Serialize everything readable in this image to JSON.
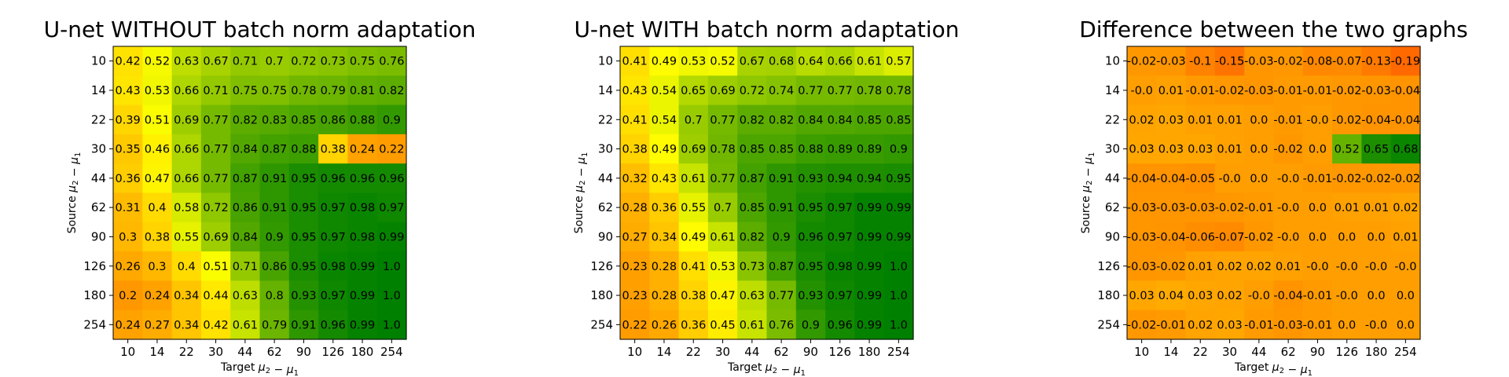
{
  "chart_data": [
    {
      "type": "heatmap",
      "title": "U-net WITHOUT batch norm adaptation",
      "xlabel": "Target μ2 − μ1",
      "ylabel": "Source μ2 − μ1",
      "x_categories": [
        "10",
        "14",
        "22",
        "30",
        "44",
        "62",
        "90",
        "126",
        "180",
        "254"
      ],
      "y_categories": [
        "10",
        "14",
        "22",
        "30",
        "44",
        "62",
        "90",
        "126",
        "180",
        "254"
      ],
      "value_range": [
        0,
        1
      ],
      "colormap": "orange-yellow-green",
      "values": [
        [
          "0.42",
          "0.52",
          "0.63",
          "0.67",
          "0.71",
          "0.7",
          "0.72",
          "0.73",
          "0.75",
          "0.76"
        ],
        [
          "0.43",
          "0.53",
          "0.66",
          "0.71",
          "0.75",
          "0.75",
          "0.78",
          "0.79",
          "0.81",
          "0.82"
        ],
        [
          "0.39",
          "0.51",
          "0.69",
          "0.77",
          "0.82",
          "0.83",
          "0.85",
          "0.86",
          "0.88",
          "0.9"
        ],
        [
          "0.35",
          "0.46",
          "0.66",
          "0.77",
          "0.84",
          "0.87",
          "0.88",
          "0.38",
          "0.24",
          "0.22"
        ],
        [
          "0.36",
          "0.47",
          "0.66",
          "0.77",
          "0.87",
          "0.91",
          "0.95",
          "0.96",
          "0.96",
          "0.96"
        ],
        [
          "0.31",
          "0.4",
          "0.58",
          "0.72",
          "0.86",
          "0.91",
          "0.95",
          "0.97",
          "0.98",
          "0.97"
        ],
        [
          "0.3",
          "0.38",
          "0.55",
          "0.69",
          "0.84",
          "0.9",
          "0.95",
          "0.97",
          "0.98",
          "0.99"
        ],
        [
          "0.26",
          "0.3",
          "0.4",
          "0.51",
          "0.71",
          "0.86",
          "0.95",
          "0.98",
          "0.99",
          "1.0"
        ],
        [
          "0.2",
          "0.24",
          "0.34",
          "0.44",
          "0.63",
          "0.8",
          "0.93",
          "0.97",
          "0.99",
          "1.0"
        ],
        [
          "0.24",
          "0.27",
          "0.34",
          "0.42",
          "0.61",
          "0.79",
          "0.91",
          "0.96",
          "0.99",
          "1.0"
        ]
      ]
    },
    {
      "type": "heatmap",
      "title": "U-net WITH batch norm adaptation",
      "xlabel": "Target μ2 − μ1",
      "ylabel": "Source μ2 − μ1",
      "x_categories": [
        "10",
        "14",
        "22",
        "30",
        "44",
        "62",
        "90",
        "126",
        "180",
        "254"
      ],
      "y_categories": [
        "10",
        "14",
        "22",
        "30",
        "44",
        "62",
        "90",
        "126",
        "180",
        "254"
      ],
      "value_range": [
        0,
        1
      ],
      "colormap": "orange-yellow-green",
      "values": [
        [
          "0.41",
          "0.49",
          "0.53",
          "0.52",
          "0.67",
          "0.68",
          "0.64",
          "0.66",
          "0.61",
          "0.57"
        ],
        [
          "0.43",
          "0.54",
          "0.65",
          "0.69",
          "0.72",
          "0.74",
          "0.77",
          "0.77",
          "0.78",
          "0.78"
        ],
        [
          "0.41",
          "0.54",
          "0.7",
          "0.77",
          "0.82",
          "0.82",
          "0.84",
          "0.84",
          "0.85",
          "0.85"
        ],
        [
          "0.38",
          "0.49",
          "0.69",
          "0.78",
          "0.85",
          "0.85",
          "0.88",
          "0.89",
          "0.89",
          "0.9"
        ],
        [
          "0.32",
          "0.43",
          "0.61",
          "0.77",
          "0.87",
          "0.91",
          "0.93",
          "0.94",
          "0.94",
          "0.95"
        ],
        [
          "0.28",
          "0.36",
          "0.55",
          "0.7",
          "0.85",
          "0.91",
          "0.95",
          "0.97",
          "0.99",
          "0.99"
        ],
        [
          "0.27",
          "0.34",
          "0.49",
          "0.61",
          "0.82",
          "0.9",
          "0.96",
          "0.97",
          "0.99",
          "0.99"
        ],
        [
          "0.23",
          "0.28",
          "0.41",
          "0.53",
          "0.73",
          "0.87",
          "0.95",
          "0.98",
          "0.99",
          "1.0"
        ],
        [
          "0.23",
          "0.28",
          "0.38",
          "0.47",
          "0.63",
          "0.77",
          "0.93",
          "0.97",
          "0.99",
          "1.0"
        ],
        [
          "0.22",
          "0.26",
          "0.36",
          "0.45",
          "0.61",
          "0.76",
          "0.9",
          "0.96",
          "0.99",
          "1.0"
        ]
      ]
    },
    {
      "type": "heatmap",
      "title": "Difference between the two graphs",
      "xlabel": "Target μ2 − μ1",
      "ylabel": "Source μ2 − μ1",
      "x_categories": [
        "10",
        "14",
        "22",
        "30",
        "44",
        "62",
        "90",
        "126",
        "180",
        "254"
      ],
      "y_categories": [
        "10",
        "14",
        "22",
        "30",
        "44",
        "62",
        "90",
        "126",
        "180",
        "254"
      ],
      "value_range": [
        -0.2,
        0.7
      ],
      "colormap": "orange-yellow-green",
      "values": [
        [
          "-0.02",
          "-0.03",
          "-0.1",
          "-0.15",
          "-0.03",
          "-0.02",
          "-0.08",
          "-0.07",
          "-0.13",
          "-0.19"
        ],
        [
          "-0.0",
          "0.01",
          "-0.01",
          "-0.02",
          "-0.03",
          "-0.01",
          "-0.01",
          "-0.02",
          "-0.03",
          "-0.04"
        ],
        [
          "0.02",
          "0.03",
          "0.01",
          "0.01",
          "0.0",
          "-0.01",
          "-0.0",
          "-0.02",
          "-0.04",
          "-0.04"
        ],
        [
          "0.03",
          "0.03",
          "0.03",
          "0.01",
          "0.0",
          "-0.02",
          "0.0",
          "0.52",
          "0.65",
          "0.68"
        ],
        [
          "-0.04",
          "-0.04",
          "-0.05",
          "-0.0",
          "0.0",
          "-0.0",
          "-0.01",
          "-0.02",
          "-0.02",
          "-0.02"
        ],
        [
          "-0.03",
          "-0.03",
          "-0.03",
          "-0.02",
          "-0.01",
          "-0.0",
          "0.0",
          "0.01",
          "0.01",
          "0.02"
        ],
        [
          "-0.03",
          "-0.04",
          "-0.06",
          "-0.07",
          "-0.02",
          "-0.0",
          "0.0",
          "0.0",
          "0.0",
          "0.01"
        ],
        [
          "-0.03",
          "-0.02",
          "0.01",
          "0.02",
          "0.02",
          "0.01",
          "-0.0",
          "-0.0",
          "-0.0",
          "-0.0"
        ],
        [
          "0.03",
          "0.04",
          "0.03",
          "0.02",
          "-0.0",
          "-0.04",
          "-0.01",
          "-0.0",
          "0.0",
          "0.0"
        ],
        [
          "-0.02",
          "-0.01",
          "0.02",
          "0.03",
          "-0.01",
          "-0.03",
          "-0.01",
          "0.0",
          "-0.0",
          "0.0"
        ]
      ]
    }
  ]
}
